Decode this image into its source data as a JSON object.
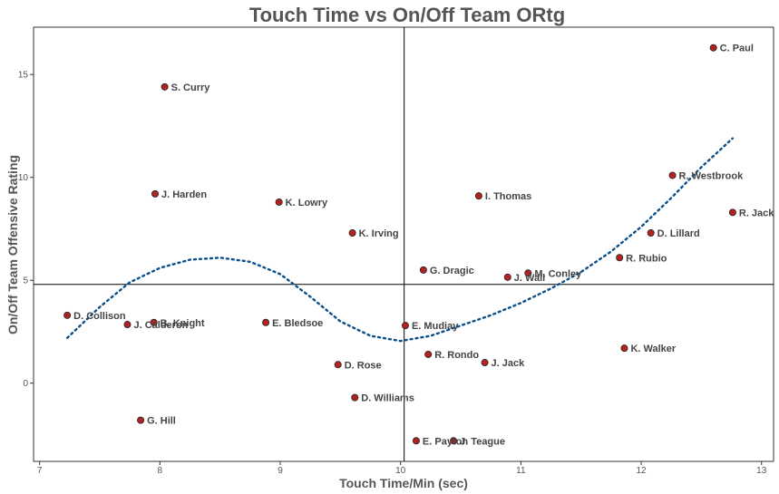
{
  "chart_data": {
    "type": "scatter",
    "title": "Touch Time vs On/Off Team ORtg",
    "xlabel": "Touch Time/Min (sec)",
    "ylabel": "On/Off Team Offensive Rating",
    "xlim": [
      6.95,
      13.1
    ],
    "ylim": [
      -3.8,
      17.3
    ],
    "xticks": [
      "7",
      "8",
      "9",
      "10",
      "11",
      "12",
      "13"
    ],
    "yticks": [
      "0",
      "5",
      "10",
      "15"
    ],
    "reference_lines": {
      "x": 10.03,
      "y": 4.8
    },
    "grid": false,
    "point_color": "#b22222",
    "trend_color": "#0b4f8a",
    "points": [
      {
        "label": "C. Paul",
        "x": 12.6,
        "y": 16.3
      },
      {
        "label": "S. Curry",
        "x": 8.04,
        "y": 14.4
      },
      {
        "label": "R. Westbrook",
        "x": 12.26,
        "y": 10.1
      },
      {
        "label": "J. Harden",
        "x": 7.96,
        "y": 9.2
      },
      {
        "label": "I. Thomas",
        "x": 10.65,
        "y": 9.1
      },
      {
        "label": "K. Lowry",
        "x": 8.99,
        "y": 8.8
      },
      {
        "label": "R. Jack",
        "x": 12.76,
        "y": 8.3
      },
      {
        "label": "K. Irving",
        "x": 9.6,
        "y": 7.3
      },
      {
        "label": "D. Lillard",
        "x": 12.08,
        "y": 7.3
      },
      {
        "label": "R. Rubio",
        "x": 11.82,
        "y": 6.1
      },
      {
        "label": "G. Dragic",
        "x": 10.19,
        "y": 5.5
      },
      {
        "label": "M. Conley",
        "x": 11.06,
        "y": 5.35
      },
      {
        "label": "J. Wall",
        "x": 10.89,
        "y": 5.15
      },
      {
        "label": "D. Collison",
        "x": 7.23,
        "y": 3.3
      },
      {
        "label": "J. Calderon",
        "x": 7.73,
        "y": 2.85
      },
      {
        "label": "B. Knight",
        "x": 7.95,
        "y": 2.95
      },
      {
        "label": "E. Bledsoe",
        "x": 8.88,
        "y": 2.95
      },
      {
        "label": "E. Mudiay",
        "x": 10.04,
        "y": 2.8
      },
      {
        "label": "K. Walker",
        "x": 11.86,
        "y": 1.7
      },
      {
        "label": "R. Rondo",
        "x": 10.23,
        "y": 1.4
      },
      {
        "label": "J. Jack",
        "x": 10.7,
        "y": 1.0
      },
      {
        "label": "D. Rose",
        "x": 9.48,
        "y": 0.9
      },
      {
        "label": "D. Williams",
        "x": 9.62,
        "y": -0.7
      },
      {
        "label": "G. Hill",
        "x": 7.84,
        "y": -1.8
      },
      {
        "label": "E. Payton",
        "x": 10.13,
        "y": -2.8
      },
      {
        "label": "J. Teague",
        "x": 10.44,
        "y": -2.8
      }
    ],
    "trend_line": {
      "style": "dotted",
      "points": [
        [
          7.23,
          2.2
        ],
        [
          7.5,
          3.7
        ],
        [
          7.75,
          4.9
        ],
        [
          8.0,
          5.6
        ],
        [
          8.25,
          6.0
        ],
        [
          8.5,
          6.1
        ],
        [
          8.75,
          5.9
        ],
        [
          9.0,
          5.3
        ],
        [
          9.25,
          4.2
        ],
        [
          9.5,
          3.0
        ],
        [
          9.75,
          2.3
        ],
        [
          10.0,
          2.05
        ],
        [
          10.25,
          2.3
        ],
        [
          10.5,
          2.8
        ],
        [
          10.75,
          3.3
        ],
        [
          11.0,
          3.9
        ],
        [
          11.25,
          4.6
        ],
        [
          11.5,
          5.4
        ],
        [
          11.75,
          6.4
        ],
        [
          12.0,
          7.6
        ],
        [
          12.25,
          9.0
        ],
        [
          12.5,
          10.5
        ],
        [
          12.76,
          11.9
        ]
      ]
    }
  }
}
